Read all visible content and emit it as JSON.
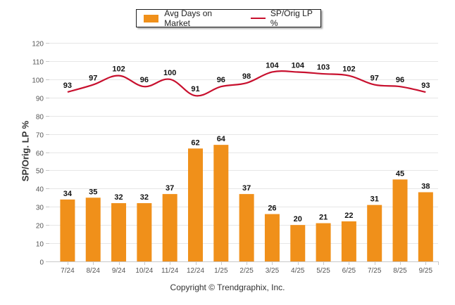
{
  "chart_data": {
    "type": "bar+line",
    "title": "",
    "xlabel": "",
    "ylabel": "SP/Orig. LP %",
    "ylim": [
      0,
      120
    ],
    "yticks": [
      0,
      10,
      20,
      30,
      40,
      50,
      60,
      70,
      80,
      90,
      100,
      110,
      120
    ],
    "grid": true,
    "legend_position": "top-center",
    "categories": [
      "7/24",
      "8/24",
      "9/24",
      "10/24",
      "11/24",
      "12/24",
      "1/25",
      "2/25",
      "3/25",
      "4/25",
      "5/25",
      "6/25",
      "7/25",
      "8/25",
      "9/25"
    ],
    "series": [
      {
        "name": "Avg Days on Market",
        "type": "bar",
        "color": "#F0901A",
        "values": [
          34,
          35,
          32,
          32,
          37,
          62,
          64,
          37,
          26,
          20,
          21,
          22,
          31,
          45,
          38
        ]
      },
      {
        "name": "SP/Orig LP %",
        "type": "line",
        "color": "#C8102E",
        "values": [
          93,
          97,
          102,
          96,
          100,
          91,
          96,
          98,
          104,
          104,
          103,
          102,
          97,
          96,
          93
        ]
      }
    ],
    "footer": "Copyright © Trendgraphix, Inc."
  }
}
